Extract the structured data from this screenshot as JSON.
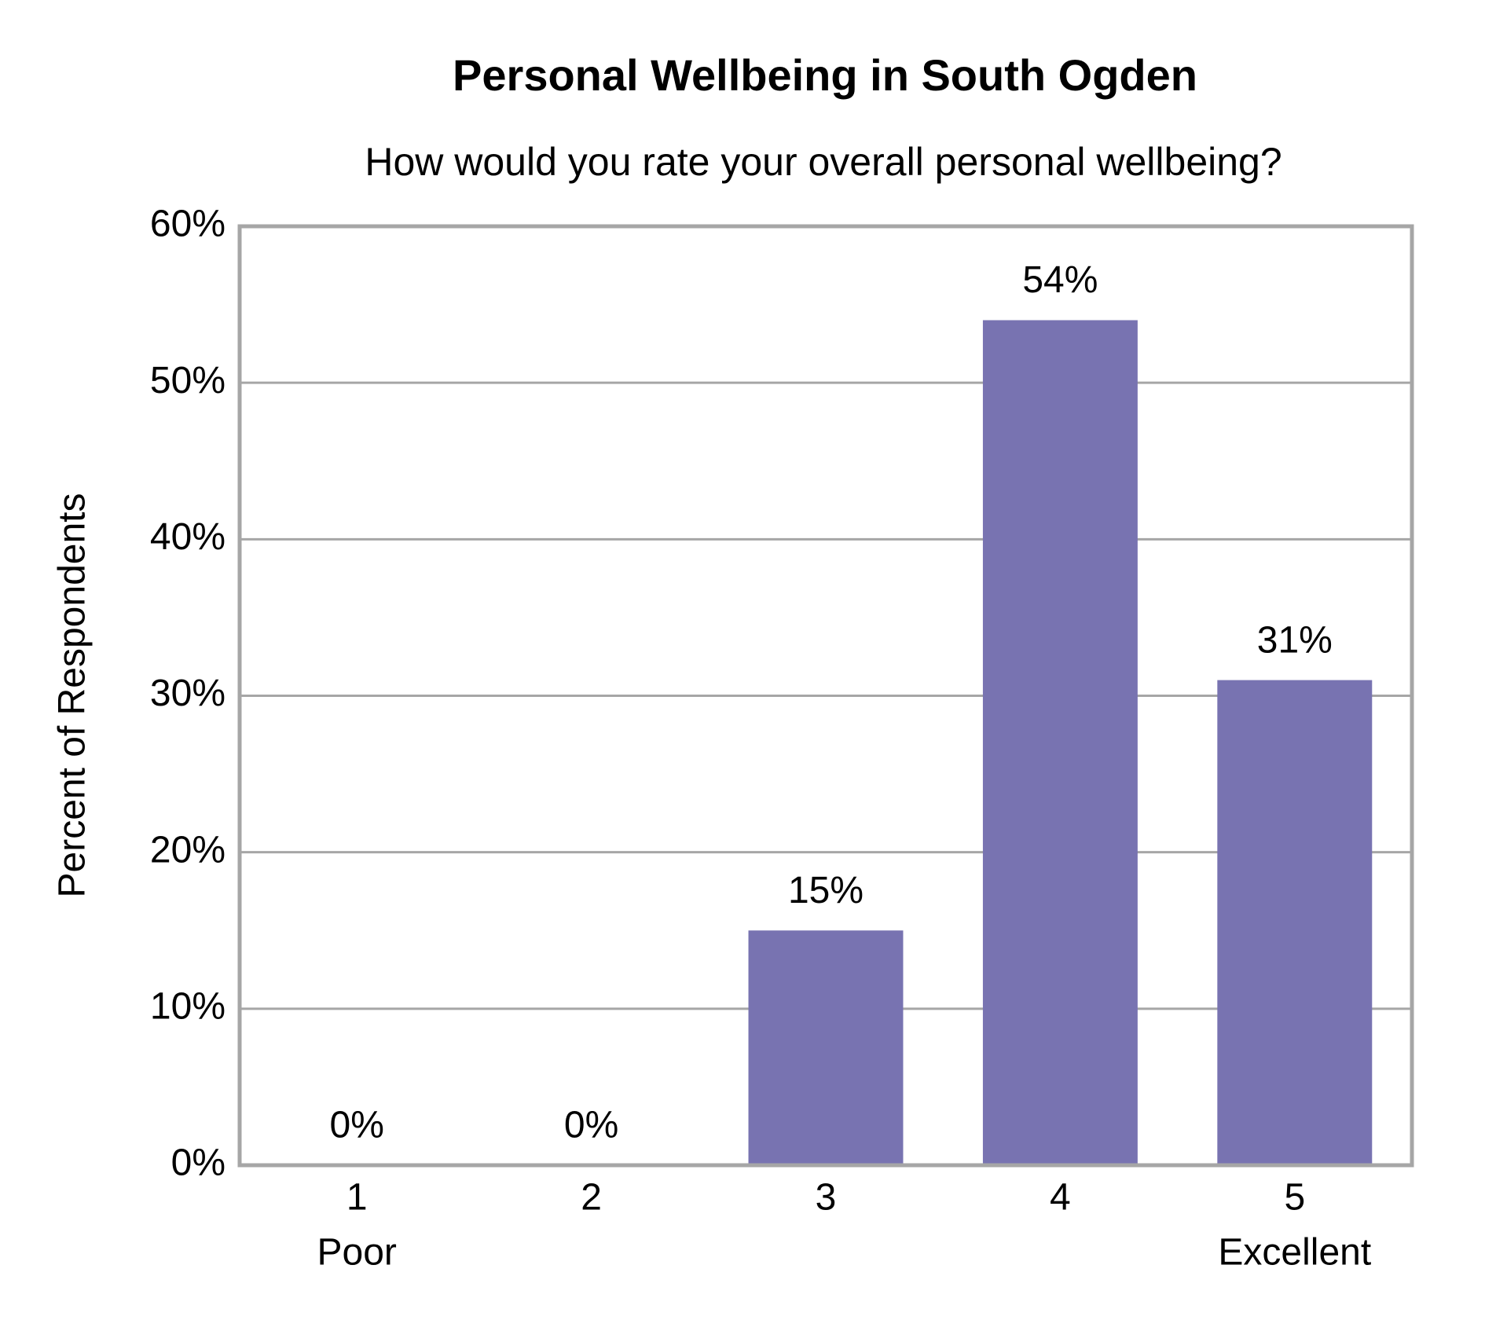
{
  "chart_data": {
    "type": "bar",
    "title": "Personal Wellbeing in South Ogden",
    "subtitle": "How would you rate your overall personal wellbeing?",
    "y_label": "Percent of Respondents",
    "categories": [
      "1",
      "2",
      "3",
      "4",
      "5"
    ],
    "category_sublabels": [
      "Poor",
      null,
      null,
      null,
      "Excellent"
    ],
    "values": [
      0,
      0,
      15,
      54,
      31
    ],
    "value_labels": [
      "0%",
      "0%",
      "15%",
      "54%",
      "31%"
    ],
    "color": "#7873b1",
    "ylim": [
      0,
      60
    ],
    "yticks": [
      {
        "value": 0,
        "label": "0%"
      },
      {
        "value": 10,
        "label": "10%"
      },
      {
        "value": 20,
        "label": "20%"
      },
      {
        "value": 30,
        "label": "30%"
      },
      {
        "value": 40,
        "label": "40%"
      },
      {
        "value": 50,
        "label": "50%"
      },
      {
        "value": 60,
        "label": "60%"
      }
    ],
    "grid": true
  }
}
